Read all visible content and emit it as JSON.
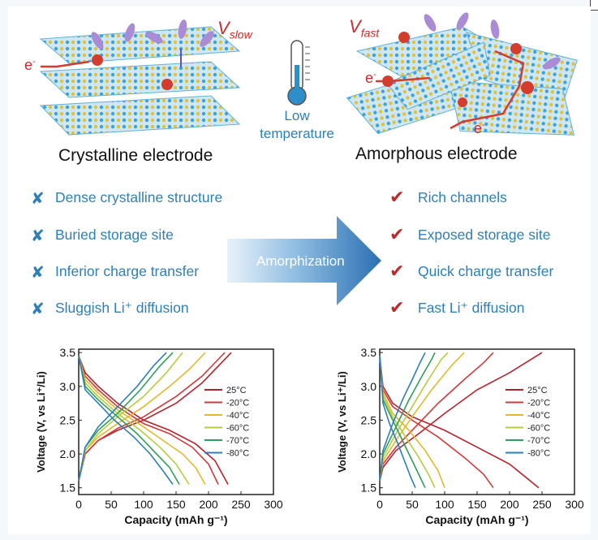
{
  "top": {
    "crystalline_label": "Crystalline electrode",
    "amorphous_label": "Amorphous electrode",
    "v_slow": {
      "v": "V",
      "sub": "slow"
    },
    "v_fast": {
      "v": "V",
      "sub": "fast"
    },
    "electron": {
      "e": "e",
      "sup": "-"
    },
    "low_temperature": {
      "line1": "Low",
      "line2": "temperature"
    }
  },
  "middle": {
    "arrow_label": "Amorphization",
    "left_items": [
      {
        "mark": "✘",
        "text": "Dense crystalline structure"
      },
      {
        "mark": "✘",
        "text": "Buried storage site"
      },
      {
        "mark": "✘",
        "text": "Inferior charge transfer"
      },
      {
        "mark": "✘",
        "text": "Sluggish Li⁺ diffusion"
      }
    ],
    "right_items": [
      {
        "mark": "✔",
        "text": "Rich channels"
      },
      {
        "mark": "✔",
        "text": "Exposed storage site"
      },
      {
        "mark": "✔",
        "text": "Quick charge transfer"
      },
      {
        "mark": "✔",
        "text": "Fast Li⁺ diffusion"
      }
    ]
  },
  "colors": {
    "blue_text": "#2d7fb8",
    "red_mark": "#c0282b",
    "series": [
      "#b5222c",
      "#d03a3a",
      "#e5b82a",
      "#b7cc3a",
      "#2e9e5a",
      "#2e7fb8"
    ]
  },
  "chart_data": [
    {
      "type": "line",
      "title": "Crystalline electrode",
      "xlabel": "Capacity (mAh g⁻¹)",
      "ylabel": "Voltage (V, vs Li⁺/Li)",
      "xlim": [
        0,
        300
      ],
      "ylim": [
        1.4,
        3.55
      ],
      "xticks": [
        0,
        50,
        100,
        150,
        200,
        250,
        300
      ],
      "yticks": [
        1.5,
        2.0,
        2.5,
        3.0,
        3.5
      ],
      "xtick_labels": [
        "0",
        "50",
        "100",
        "150",
        "200",
        "250",
        "300"
      ],
      "ytick_labels": [
        "1.5",
        "2.0",
        "2.5",
        "3.0",
        "3.5"
      ],
      "legend_placement": "right",
      "series": [
        {
          "name": "25°C",
          "discharge": [
            [
              0,
              3.45
            ],
            [
              10,
              3.2
            ],
            [
              30,
              3.0
            ],
            [
              60,
              2.75
            ],
            [
              100,
              2.5
            ],
            [
              140,
              2.35
            ],
            [
              180,
              2.15
            ],
            [
              210,
              1.9
            ],
            [
              230,
              1.55
            ]
          ],
          "charge": [
            [
              0,
              1.6
            ],
            [
              10,
              2.0
            ],
            [
              30,
              2.2
            ],
            [
              60,
              2.35
            ],
            [
              100,
              2.5
            ],
            [
              150,
              2.75
            ],
            [
              190,
              3.05
            ],
            [
              220,
              3.35
            ],
            [
              235,
              3.5
            ]
          ]
        },
        {
          "name": "-20°C",
          "discharge": [
            [
              0,
              3.45
            ],
            [
              10,
              3.15
            ],
            [
              30,
              2.95
            ],
            [
              60,
              2.7
            ],
            [
              100,
              2.45
            ],
            [
              140,
              2.3
            ],
            [
              175,
              2.1
            ],
            [
              200,
              1.85
            ],
            [
              215,
              1.55
            ]
          ],
          "charge": [
            [
              0,
              1.6
            ],
            [
              10,
              2.0
            ],
            [
              30,
              2.2
            ],
            [
              60,
              2.38
            ],
            [
              100,
              2.55
            ],
            [
              150,
              2.85
            ],
            [
              190,
              3.15
            ],
            [
              215,
              3.4
            ],
            [
              225,
              3.5
            ]
          ]
        },
        {
          "name": "-40°C",
          "discharge": [
            [
              0,
              3.45
            ],
            [
              10,
              3.1
            ],
            [
              30,
              2.9
            ],
            [
              60,
              2.65
            ],
            [
              100,
              2.4
            ],
            [
              130,
              2.2
            ],
            [
              160,
              2.0
            ],
            [
              180,
              1.8
            ],
            [
              195,
              1.55
            ]
          ],
          "charge": [
            [
              0,
              1.6
            ],
            [
              10,
              2.05
            ],
            [
              30,
              2.25
            ],
            [
              60,
              2.45
            ],
            [
              100,
              2.7
            ],
            [
              140,
              3.0
            ],
            [
              170,
              3.25
            ],
            [
              195,
              3.5
            ]
          ]
        },
        {
          "name": "-60°C",
          "discharge": [
            [
              0,
              3.45
            ],
            [
              10,
              3.05
            ],
            [
              30,
              2.85
            ],
            [
              60,
              2.6
            ],
            [
              95,
              2.35
            ],
            [
              125,
              2.1
            ],
            [
              150,
              1.85
            ],
            [
              170,
              1.55
            ]
          ],
          "charge": [
            [
              0,
              1.6
            ],
            [
              10,
              2.05
            ],
            [
              30,
              2.3
            ],
            [
              60,
              2.55
            ],
            [
              100,
              2.85
            ],
            [
              135,
              3.2
            ],
            [
              160,
              3.5
            ]
          ]
        },
        {
          "name": "-70°C",
          "discharge": [
            [
              0,
              3.45
            ],
            [
              10,
              3.0
            ],
            [
              30,
              2.8
            ],
            [
              60,
              2.55
            ],
            [
              90,
              2.3
            ],
            [
              115,
              2.05
            ],
            [
              140,
              1.8
            ],
            [
              155,
              1.55
            ]
          ],
          "charge": [
            [
              0,
              1.6
            ],
            [
              10,
              2.1
            ],
            [
              30,
              2.35
            ],
            [
              60,
              2.6
            ],
            [
              95,
              2.95
            ],
            [
              125,
              3.3
            ],
            [
              145,
              3.5
            ]
          ]
        },
        {
          "name": "-80°C",
          "discharge": [
            [
              0,
              3.45
            ],
            [
              10,
              2.95
            ],
            [
              30,
              2.75
            ],
            [
              55,
              2.5
            ],
            [
              85,
              2.25
            ],
            [
              110,
              2.0
            ],
            [
              130,
              1.75
            ],
            [
              145,
              1.55
            ]
          ],
          "charge": [
            [
              0,
              1.6
            ],
            [
              10,
              2.1
            ],
            [
              30,
              2.4
            ],
            [
              60,
              2.7
            ],
            [
              90,
              3.0
            ],
            [
              115,
              3.3
            ],
            [
              135,
              3.5
            ]
          ]
        }
      ]
    },
    {
      "type": "line",
      "title": "Amorphous electrode",
      "xlabel": "Capacity (mAh g⁻¹)",
      "ylabel": "Voltage (V, vs Li⁺/Li)",
      "xlim": [
        0,
        300
      ],
      "ylim": [
        1.4,
        3.55
      ],
      "xticks": [
        0,
        50,
        100,
        150,
        200,
        250,
        300
      ],
      "yticks": [
        1.5,
        2.0,
        2.5,
        3.0,
        3.5
      ],
      "xtick_labels": [
        "0",
        "50",
        "100",
        "150",
        "200",
        "250",
        "300"
      ],
      "ytick_labels": [
        "1.5",
        "2.0",
        "2.5",
        "3.0",
        "3.5"
      ],
      "legend_placement": "right",
      "series": [
        {
          "name": "25°C",
          "discharge": [
            [
              0,
              3.45
            ],
            [
              5,
              3.0
            ],
            [
              20,
              2.75
            ],
            [
              50,
              2.55
            ],
            [
              100,
              2.35
            ],
            [
              150,
              2.1
            ],
            [
              200,
              1.85
            ],
            [
              245,
              1.5
            ]
          ],
          "charge": [
            [
              0,
              1.6
            ],
            [
              5,
              1.8
            ],
            [
              25,
              2.05
            ],
            [
              60,
              2.3
            ],
            [
              100,
              2.6
            ],
            [
              150,
              2.95
            ],
            [
              200,
              3.2
            ],
            [
              250,
              3.5
            ]
          ]
        },
        {
          "name": "-20°C",
          "discharge": [
            [
              0,
              3.45
            ],
            [
              5,
              2.95
            ],
            [
              20,
              2.7
            ],
            [
              50,
              2.5
            ],
            [
              90,
              2.25
            ],
            [
              130,
              1.95
            ],
            [
              160,
              1.7
            ],
            [
              175,
              1.5
            ]
          ],
          "charge": [
            [
              0,
              1.6
            ],
            [
              5,
              1.85
            ],
            [
              25,
              2.1
            ],
            [
              55,
              2.4
            ],
            [
              90,
              2.75
            ],
            [
              130,
              3.1
            ],
            [
              160,
              3.35
            ],
            [
              175,
              3.5
            ]
          ]
        },
        {
          "name": "-40°C",
          "discharge": [
            [
              0,
              3.45
            ],
            [
              5,
              2.9
            ],
            [
              20,
              2.6
            ],
            [
              45,
              2.35
            ],
            [
              70,
              2.05
            ],
            [
              90,
              1.75
            ],
            [
              100,
              1.5
            ]
          ],
          "charge": [
            [
              0,
              1.6
            ],
            [
              5,
              1.9
            ],
            [
              25,
              2.2
            ],
            [
              50,
              2.55
            ],
            [
              80,
              2.95
            ],
            [
              110,
              3.3
            ],
            [
              130,
              3.5
            ]
          ]
        },
        {
          "name": "-60°C",
          "discharge": [
            [
              0,
              3.45
            ],
            [
              5,
              2.85
            ],
            [
              20,
              2.55
            ],
            [
              40,
              2.25
            ],
            [
              60,
              1.95
            ],
            [
              75,
              1.7
            ],
            [
              85,
              1.5
            ]
          ],
          "charge": [
            [
              0,
              1.6
            ],
            [
              5,
              1.95
            ],
            [
              25,
              2.3
            ],
            [
              50,
              2.7
            ],
            [
              75,
              3.1
            ],
            [
              95,
              3.4
            ],
            [
              105,
              3.5
            ]
          ]
        },
        {
          "name": "-70°C",
          "discharge": [
            [
              0,
              3.45
            ],
            [
              5,
              2.8
            ],
            [
              20,
              2.5
            ],
            [
              35,
              2.2
            ],
            [
              50,
              1.9
            ],
            [
              60,
              1.7
            ],
            [
              70,
              1.5
            ]
          ],
          "charge": [
            [
              0,
              1.6
            ],
            [
              5,
              2.0
            ],
            [
              25,
              2.4
            ],
            [
              45,
              2.8
            ],
            [
              65,
              3.15
            ],
            [
              80,
              3.4
            ],
            [
              85,
              3.5
            ]
          ]
        },
        {
          "name": "-80°C",
          "discharge": [
            [
              0,
              3.45
            ],
            [
              5,
              2.75
            ],
            [
              15,
              2.45
            ],
            [
              28,
              2.15
            ],
            [
              40,
              1.85
            ],
            [
              48,
              1.65
            ],
            [
              55,
              1.5
            ]
          ],
          "charge": [
            [
              0,
              1.6
            ],
            [
              5,
              2.05
            ],
            [
              20,
              2.45
            ],
            [
              35,
              2.8
            ],
            [
              50,
              3.1
            ],
            [
              62,
              3.35
            ],
            [
              70,
              3.5
            ]
          ]
        }
      ]
    }
  ]
}
